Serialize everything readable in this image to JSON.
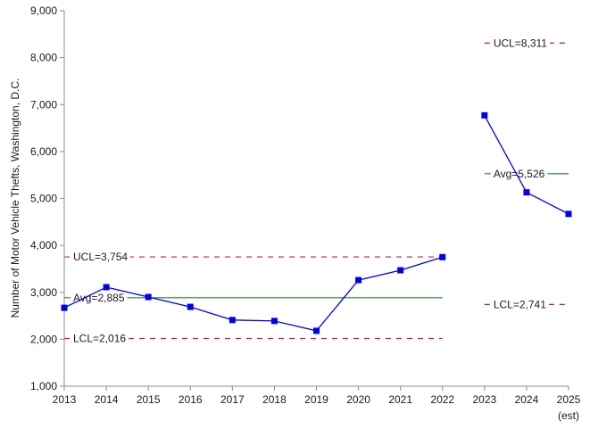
{
  "chart_data": {
    "type": "line",
    "ylabel": "Number of Motor Vehicle Thefts, Washington, D.C.",
    "xlabel": "",
    "x_tick_labels": [
      "2013",
      "2014",
      "2015",
      "2016",
      "2017",
      "2018",
      "2019",
      "2020",
      "2021",
      "2022",
      "2023",
      "2024",
      "2025"
    ],
    "x_tick_sublabels": [
      "",
      "",
      "",
      "",
      "",
      "",
      "",
      "",
      "",
      "",
      "",
      "",
      "(est)"
    ],
    "y_tick_labels": [
      "1,000",
      "2,000",
      "3,000",
      "4,000",
      "5,000",
      "6,000",
      "7,000",
      "8,000",
      "9,000"
    ],
    "ylim": [
      1000,
      9000
    ],
    "grid": false,
    "series": [
      {
        "x": [
          2013,
          2014,
          2015,
          2016,
          2017,
          2018,
          2019,
          2020,
          2021,
          2022
        ],
        "values": [
          2670,
          3110,
          2900,
          2690,
          2410,
          2390,
          2180,
          3260,
          3470,
          3750
        ]
      },
      {
        "x": [
          2023,
          2024,
          2025
        ],
        "values": [
          6770,
          5130,
          4670
        ]
      }
    ],
    "reference_lines": [
      {
        "kind": "avg",
        "label": "Avg=2,885",
        "value": 2885,
        "x_range": [
          2013,
          2022
        ],
        "color": "#1e8a1e",
        "style": "solid"
      },
      {
        "kind": "ucl",
        "label": "UCL=3,754",
        "value": 3754,
        "x_range": [
          2013,
          2022
        ],
        "color": "#cc1f1f",
        "style": "dashed"
      },
      {
        "kind": "lcl",
        "label": "LCL=2,016",
        "value": 2016,
        "x_range": [
          2013,
          2022
        ],
        "color": "#cc1f1f",
        "style": "dashed"
      },
      {
        "kind": "avg",
        "label": "Avg=5,526",
        "value": 5526,
        "x_range": [
          2023,
          2025
        ],
        "color": "#1e8a1e",
        "style": "solid"
      },
      {
        "kind": "ucl",
        "label": "UCL=8,311",
        "value": 8311,
        "x_range": [
          2023,
          2025
        ],
        "color": "#cc1f1f",
        "style": "dashed"
      },
      {
        "kind": "lcl",
        "label": "LCL=2,741",
        "value": 2741,
        "x_range": [
          2023,
          2025
        ],
        "color": "#cc1f1f",
        "style": "dashed"
      }
    ],
    "colors": {
      "series": "#0000ee",
      "average": "#1e8a1e",
      "limits": "#cc1f1f",
      "axis": "#8c8c8c"
    }
  }
}
